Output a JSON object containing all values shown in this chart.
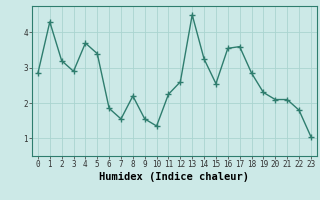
{
  "x": [
    0,
    1,
    2,
    3,
    4,
    5,
    6,
    7,
    8,
    9,
    10,
    11,
    12,
    13,
    14,
    15,
    16,
    17,
    18,
    19,
    20,
    21,
    22,
    23
  ],
  "y": [
    2.85,
    4.3,
    3.2,
    2.9,
    3.7,
    3.4,
    1.85,
    1.55,
    2.2,
    1.55,
    1.35,
    2.25,
    2.6,
    4.5,
    3.25,
    2.55,
    3.55,
    3.6,
    2.85,
    2.3,
    2.1,
    2.1,
    1.8,
    1.05
  ],
  "line_color": "#2e7d6e",
  "marker": "+",
  "marker_size": 4,
  "marker_linewidth": 1.0,
  "bg_color": "#cce9e7",
  "grid_color": "#aad4d0",
  "xlabel": "Humidex (Indice chaleur)",
  "yticks": [
    1,
    2,
    3,
    4
  ],
  "xticks": [
    0,
    1,
    2,
    3,
    4,
    5,
    6,
    7,
    8,
    9,
    10,
    11,
    12,
    13,
    14,
    15,
    16,
    17,
    18,
    19,
    20,
    21,
    22,
    23
  ],
  "xlim": [
    -0.5,
    23.5
  ],
  "ylim": [
    0.5,
    4.75
  ],
  "xlabel_fontsize": 7.5,
  "tick_fontsize": 5.5,
  "linewidth": 1.0,
  "spine_color": "#2e7d6e"
}
